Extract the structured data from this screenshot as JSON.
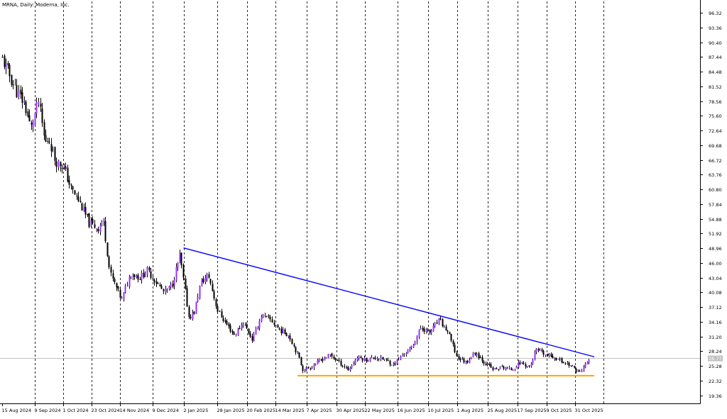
{
  "chart_data": {
    "type": "candlestick",
    "title": "MRNA, Daily:  Moderna, Inc.",
    "y_axis_ticks": [
      96.32,
      93.36,
      90.4,
      87.44,
      84.48,
      81.52,
      78.56,
      75.6,
      72.64,
      69.68,
      66.72,
      63.76,
      60.8,
      57.84,
      54.88,
      51.92,
      48.96,
      46.0,
      43.04,
      40.08,
      37.12,
      34.16,
      31.2,
      28.24,
      25.28,
      22.32,
      19.36
    ],
    "ylim": [
      17.4,
      98.9
    ],
    "x_axis_ticks": [
      "15 Aug 2024",
      "9 Sep 2024",
      "1 Oct 2024",
      "23 Oct 2024",
      "14 Nov 2024",
      "9 Dec 2024",
      "2 Jan 2025",
      "28 Jan 2025",
      "20 Feb 2025",
      "14 Mar 2025",
      "7 Apr 2025",
      "30 Apr 2025",
      "22 May 2025",
      "16 Jun 2025",
      "10 Jul 2025",
      "1 Aug 2025",
      "25 Aug 2025",
      "17 Sep 2025",
      "9 Oct 2025",
      "31 Oct 2025"
    ],
    "current_price_label": "26.77",
    "current_price": 26.77,
    "grid": "vertical dashed",
    "close_path": [
      [
        "15 Aug 2024",
        87.0
      ],
      [
        "26 Aug 2024",
        80.5
      ],
      [
        "1 Sep 2024",
        78.0
      ],
      [
        "6 Sep 2024",
        73.0
      ],
      [
        "12 Sep 2024",
        78.5
      ],
      [
        "17 Sep 2024",
        70.0
      ],
      [
        "20 Sep 2024",
        71.0
      ],
      [
        "25 Sep 2024",
        66.5
      ],
      [
        "1 Oct 2024",
        65.5
      ],
      [
        "7 Oct 2024",
        61.0
      ],
      [
        "14 Oct 2024",
        58.0
      ],
      [
        "21 Oct 2024",
        54.0
      ],
      [
        "28 Oct 2024",
        53.0
      ],
      [
        "1 Nov 2024",
        54.5
      ],
      [
        "6 Nov 2024",
        44.0
      ],
      [
        "11 Nov 2024",
        41.0
      ],
      [
        "15 Nov 2024",
        38.5
      ],
      [
        "22 Nov 2024",
        44.0
      ],
      [
        "29 Nov 2024",
        43.0
      ],
      [
        "5 Dec 2024",
        44.5
      ],
      [
        "12 Dec 2024",
        42.0
      ],
      [
        "18 Dec 2024",
        40.0
      ],
      [
        "24 Dec 2024",
        41.5
      ],
      [
        "30 Dec 2024",
        47.5
      ],
      [
        "6 Jan 2025",
        35.0
      ],
      [
        "10 Jan 2025",
        36.0
      ],
      [
        "15 Jan 2025",
        42.0
      ],
      [
        "21 Jan 2025",
        43.5
      ],
      [
        "28 Jan 2025",
        36.5
      ],
      [
        "3 Feb 2025",
        34.0
      ],
      [
        "10 Feb 2025",
        31.5
      ],
      [
        "17 Feb 2025",
        34.0
      ],
      [
        "24 Feb 2025",
        30.5
      ],
      [
        "3 Mar 2025",
        35.5
      ],
      [
        "10 Mar 2025",
        34.5
      ],
      [
        "17 Mar 2025",
        32.5
      ],
      [
        "24 Mar 2025",
        31.5
      ],
      [
        "31 Mar 2025",
        27.5
      ],
      [
        "4 Apr 2025",
        24.5
      ],
      [
        "10 Apr 2025",
        25.0
      ],
      [
        "18 Apr 2025",
        26.5
      ],
      [
        "25 Apr 2025",
        27.5
      ],
      [
        "2 May 2025",
        26.0
      ],
      [
        "9 May 2025",
        24.5
      ],
      [
        "16 May 2025",
        27.0
      ],
      [
        "23 May 2025",
        26.5
      ],
      [
        "30 May 2025",
        27.0
      ],
      [
        "6 Jun 2025",
        26.5
      ],
      [
        "13 Jun 2025",
        25.5
      ],
      [
        "20 Jun 2025",
        27.5
      ],
      [
        "27 Jun 2025",
        29.0
      ],
      [
        "4 Jul 2025",
        33.0
      ],
      [
        "11 Jul 2025",
        32.0
      ],
      [
        "18 Jul 2025",
        34.5
      ],
      [
        "25 Jul 2025",
        32.0
      ],
      [
        "1 Aug 2025",
        27.0
      ],
      [
        "8 Aug 2025",
        26.0
      ],
      [
        "15 Aug 2025",
        28.0
      ],
      [
        "22 Aug 2025",
        26.0
      ],
      [
        "29 Aug 2025",
        24.5
      ],
      [
        "5 Sep 2025",
        25.0
      ],
      [
        "12 Sep 2025",
        24.5
      ],
      [
        "19 Sep 2025",
        26.0
      ],
      [
        "26 Sep 2025",
        25.0
      ],
      [
        "1 Oct 2025",
        28.5
      ],
      [
        "8 Oct 2025",
        27.5
      ],
      [
        "15 Oct 2025",
        27.0
      ],
      [
        "22 Oct 2025",
        26.0
      ],
      [
        "27 Oct 2025",
        25.5
      ],
      [
        "31 Oct 2025",
        24.5
      ],
      [
        "4 Nov 2025",
        24.0
      ],
      [
        "8 Nov 2025",
        25.5
      ],
      [
        "11 Nov 2025",
        26.77
      ]
    ],
    "trendlines": [
      {
        "color": "#0000ff",
        "from": [
          "2 Jan 2025",
          49.0
        ],
        "to": [
          "15 Nov 2025",
          27.1
        ]
      },
      {
        "color": "#ffa500",
        "from": [
          "31 Mar 2025",
          23.3
        ],
        "to": [
          "15 Nov 2025",
          23.3
        ]
      }
    ],
    "colors": {
      "bull_candle": "#9b30ff",
      "bear_candle": "#000000",
      "wick": "#000000",
      "resistance_line": "#0000ff",
      "support_line": "#ffa500",
      "grid": "#000000",
      "price_label_bg": "#c0c0c0"
    }
  }
}
